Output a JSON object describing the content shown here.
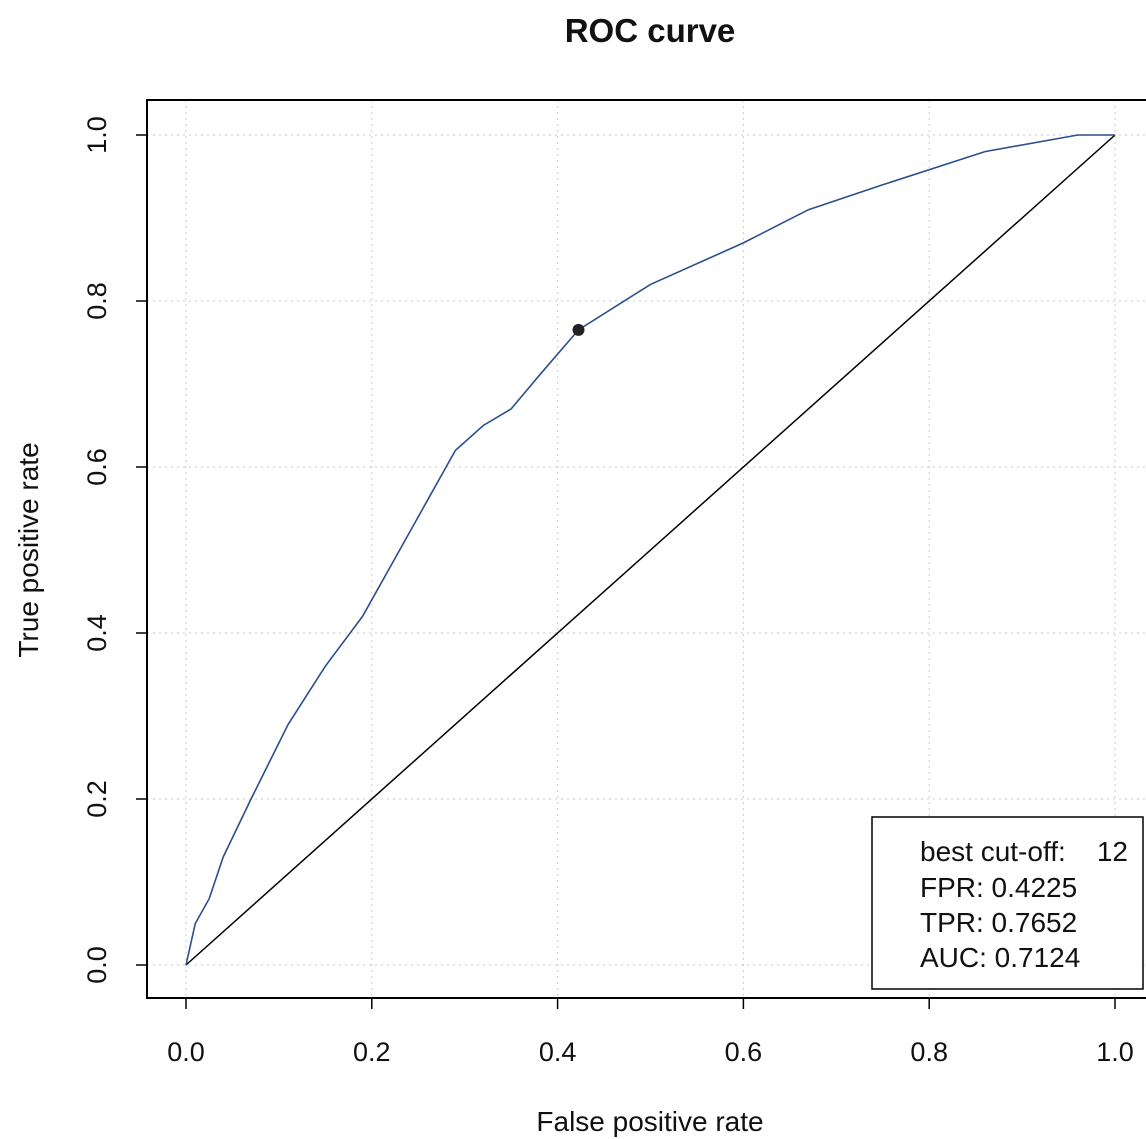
{
  "chart_data": {
    "type": "line",
    "title": "ROC curve",
    "xlabel": "False positive rate",
    "ylabel": "True positive rate",
    "xlim": [
      0,
      1
    ],
    "ylim": [
      0,
      1
    ],
    "x_ticks": [
      "0.0",
      "0.2",
      "0.4",
      "0.6",
      "0.8",
      "1.0"
    ],
    "y_ticks": [
      "0.0",
      "0.2",
      "0.4",
      "0.6",
      "0.8",
      "1.0"
    ],
    "grid": true,
    "series": [
      {
        "color": "#2b4f8c",
        "x": [
          0.0,
          0.01,
          0.025,
          0.04,
          0.07,
          0.11,
          0.15,
          0.19,
          0.22,
          0.26,
          0.29,
          0.32,
          0.35,
          0.38,
          0.4225,
          0.5,
          0.6,
          0.67,
          0.75,
          0.86,
          0.96,
          1.0
        ],
        "y": [
          0.0,
          0.05,
          0.08,
          0.13,
          0.2,
          0.29,
          0.36,
          0.42,
          0.48,
          0.56,
          0.62,
          0.65,
          0.67,
          0.71,
          0.7652,
          0.82,
          0.87,
          0.91,
          0.94,
          0.98,
          1.0,
          1.0
        ]
      }
    ],
    "reference_line": {
      "x": [
        0,
        1
      ],
      "y": [
        0,
        1
      ],
      "color": "#000000"
    },
    "best_point": {
      "x": 0.4225,
      "y": 0.7652
    },
    "legend": {
      "position": "bottom-right",
      "cutoff_label": "best cut-off:",
      "cutoff_value": "12",
      "fpr": "FPR: 0.4225",
      "tpr": "TPR: 0.7652",
      "auc": "AUC: 0.7124"
    }
  }
}
